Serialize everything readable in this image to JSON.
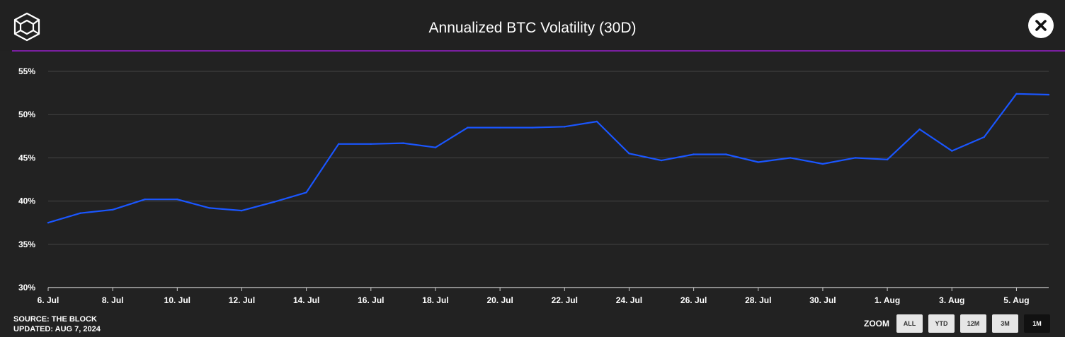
{
  "header": {
    "title": "Annualized BTC Volatility (30D)"
  },
  "footer": {
    "source": "SOURCE: THE BLOCK",
    "updated": "UPDATED: AUG 7, 2024"
  },
  "zoom": {
    "label": "ZOOM",
    "buttons": [
      "ALL",
      "YTD",
      "12M",
      "3M",
      "1M"
    ],
    "active": "1M"
  },
  "colors": {
    "line": "#1a56ff",
    "accent": "#7b1fa2",
    "grid": "#444444"
  },
  "chart_data": {
    "type": "line",
    "title": "Annualized BTC Volatility (30D)",
    "xlabel": "",
    "ylabel": "",
    "ylim": [
      30,
      55
    ],
    "y_ticks": [
      30,
      35,
      40,
      45,
      50,
      55
    ],
    "y_unit": "%",
    "x_tick_labels": [
      "6. Jul",
      "8. Jul",
      "10. Jul",
      "12. Jul",
      "14. Jul",
      "16. Jul",
      "18. Jul",
      "20. Jul",
      "22. Jul",
      "24. Jul",
      "26. Jul",
      "28. Jul",
      "30. Jul",
      "1. Aug",
      "3. Aug",
      "5. Aug"
    ],
    "x": [
      "6. Jul",
      "7. Jul",
      "8. Jul",
      "9. Jul",
      "10. Jul",
      "11. Jul",
      "12. Jul",
      "13. Jul",
      "14. Jul",
      "15. Jul",
      "16. Jul",
      "17. Jul",
      "18. Jul",
      "19. Jul",
      "20. Jul",
      "21. Jul",
      "22. Jul",
      "23. Jul",
      "24. Jul",
      "25. Jul",
      "26. Jul",
      "27. Jul",
      "28. Jul",
      "29. Jul",
      "30. Jul",
      "31. Jul",
      "1. Aug",
      "2. Aug",
      "3. Aug",
      "4. Aug",
      "5. Aug",
      "6. Aug"
    ],
    "series": [
      {
        "values": [
          37.5,
          38.6,
          39.0,
          40.2,
          40.2,
          39.2,
          38.9,
          39.9,
          41.0,
          46.6,
          46.6,
          46.7,
          46.2,
          48.5,
          48.5,
          48.5,
          48.6,
          49.2,
          45.5,
          44.7,
          45.4,
          45.4,
          44.5,
          45.0,
          44.3,
          45.0,
          44.8,
          48.3,
          45.8,
          47.4,
          52.4,
          52.3
        ]
      }
    ],
    "grid": true,
    "legend": "none"
  }
}
